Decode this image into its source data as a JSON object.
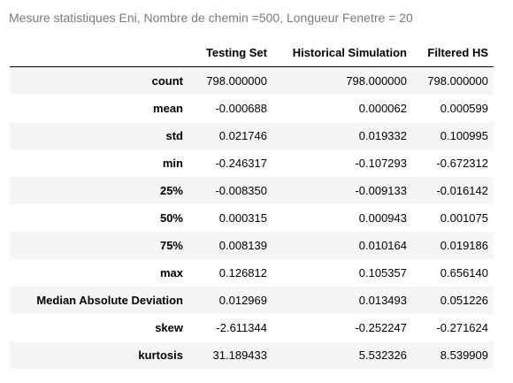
{
  "caption": "Mesure statistiques Eni, Nombre de chemin =500, Longueur Fenetre = 20",
  "table": {
    "header": [
      "",
      "Testing Set",
      "Historical Simulation",
      "Filtered HS"
    ],
    "rows": [
      {
        "label": "count",
        "values": [
          "798.000000",
          "798.000000",
          "798.000000"
        ]
      },
      {
        "label": "mean",
        "values": [
          "-0.000688",
          "0.000062",
          "0.000599"
        ]
      },
      {
        "label": "std",
        "values": [
          "0.021746",
          "0.019332",
          "0.100995"
        ]
      },
      {
        "label": "min",
        "values": [
          "-0.246317",
          "-0.107293",
          "-0.672312"
        ]
      },
      {
        "label": "25%",
        "values": [
          "-0.008350",
          "-0.009133",
          "-0.016142"
        ]
      },
      {
        "label": "50%",
        "values": [
          "0.000315",
          "0.000943",
          "0.001075"
        ]
      },
      {
        "label": "75%",
        "values": [
          "0.008139",
          "0.010164",
          "0.019186"
        ]
      },
      {
        "label": "max",
        "values": [
          "0.126812",
          "0.105357",
          "0.656140"
        ]
      },
      {
        "label": "Median Absolute Deviation",
        "values": [
          "0.012969",
          "0.013493",
          "0.051226"
        ]
      },
      {
        "label": "skew",
        "values": [
          "-2.611344",
          "-0.252247",
          "-0.271624"
        ]
      },
      {
        "label": "kurtosis",
        "values": [
          "31.189433",
          "5.532326",
          "8.539909"
        ]
      }
    ]
  },
  "colors": {
    "caption_text": "#7a7a7a",
    "stripe": "#f5f5f5",
    "header_rule": "#000000"
  }
}
